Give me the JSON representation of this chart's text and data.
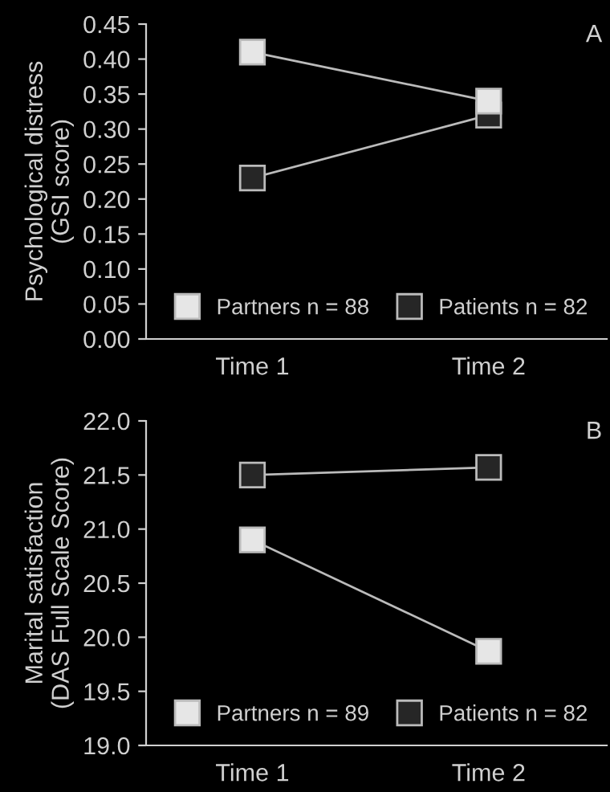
{
  "chart_data": [
    {
      "type": "line",
      "title": "A",
      "ylabel": "Psychological distress\n(GSI score)",
      "categories": [
        "Time 1",
        "Time 2"
      ],
      "ylim": [
        0,
        0.45
      ],
      "yticks": [
        {
          "value": 0,
          "label": "0.00"
        },
        {
          "value": 0.05,
          "label": "0.05"
        },
        {
          "value": 0.1,
          "label": "0.10"
        },
        {
          "value": 0.15,
          "label": "0.15"
        },
        {
          "value": 0.2,
          "label": "0.20"
        },
        {
          "value": 0.25,
          "label": "0.25"
        },
        {
          "value": 0.3,
          "label": "0.30"
        },
        {
          "value": 0.35,
          "label": "0.35"
        },
        {
          "value": 0.4,
          "label": "0.40"
        },
        {
          "value": 0.45,
          "label": "0.45"
        }
      ],
      "marker": "square",
      "legend": "bottom",
      "grid": false,
      "series": [
        {
          "name": "Partners n = 88",
          "color": "#e6e6e6",
          "values": [
            0.41,
            0.34
          ]
        },
        {
          "name": "Patients n = 82",
          "color": "#262626",
          "values": [
            0.23,
            0.32
          ]
        }
      ]
    },
    {
      "type": "line",
      "title": "B",
      "ylabel": "Marital satisfaction\n(DAS Full Scale Score)",
      "categories": [
        "Time 1",
        "Time 2"
      ],
      "ylim": [
        19.0,
        22.0
      ],
      "yticks": [
        {
          "value": 19.0,
          "label": "19.0"
        },
        {
          "value": 19.5,
          "label": "19.5"
        },
        {
          "value": 20.0,
          "label": "20.0"
        },
        {
          "value": 20.5,
          "label": "20.5"
        },
        {
          "value": 21.0,
          "label": "21.0"
        },
        {
          "value": 21.5,
          "label": "21.5"
        },
        {
          "value": 22.0,
          "label": "22.0"
        }
      ],
      "marker": "square",
      "legend": "bottom",
      "grid": false,
      "series": [
        {
          "name": "Partners n = 89",
          "color": "#e6e6e6",
          "values": [
            20.9,
            19.87
          ]
        },
        {
          "name": "Patients n = 82",
          "color": "#262626",
          "values": [
            21.5,
            21.57
          ]
        }
      ]
    }
  ]
}
